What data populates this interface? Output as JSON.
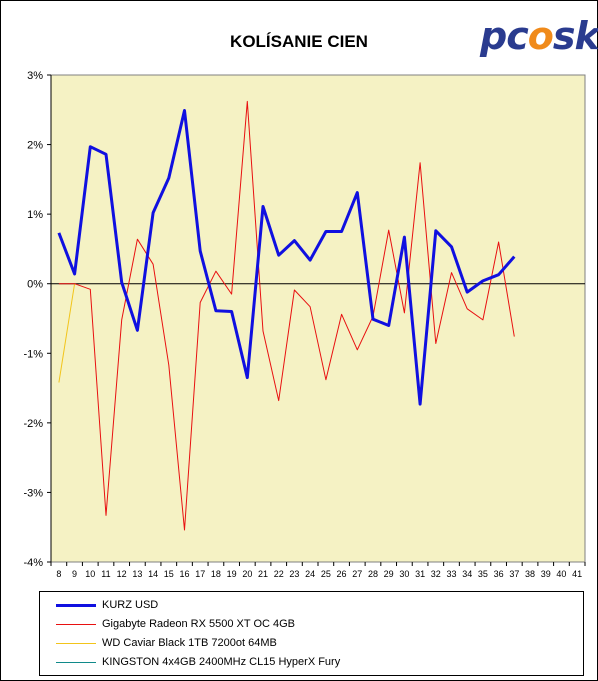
{
  "logo_text": "pcosk",
  "chart_data": {
    "type": "line",
    "title": "KOLÍSANIE CIEN",
    "xlabel": "",
    "ylabel": "",
    "ylim": [
      -4,
      3
    ],
    "y_ticks": [
      "-4%",
      "-3%",
      "-2%",
      "-1%",
      "0%",
      "1%",
      "2%",
      "3%"
    ],
    "grid": false,
    "legend_position": "bottom",
    "background_color": "#f5f2c4",
    "categories": [
      "8",
      "9",
      "10",
      "11",
      "12",
      "13",
      "14",
      "15",
      "16",
      "17",
      "18",
      "19",
      "20",
      "21",
      "22",
      "23",
      "24",
      "25",
      "26",
      "27",
      "28",
      "29",
      "30",
      "31",
      "32",
      "33",
      "34",
      "35",
      "36",
      "37",
      "38",
      "39",
      "40",
      "41"
    ],
    "series": [
      {
        "name": "KURZ USD",
        "color": "#1010e0",
        "width": 3,
        "values": [
          0.73,
          0.14,
          1.97,
          1.86,
          0.02,
          -0.67,
          1.02,
          1.52,
          2.49,
          0.47,
          -0.39,
          -0.4,
          -1.35,
          1.11,
          0.41,
          0.62,
          0.34,
          0.75,
          0.75,
          1.31,
          -0.51,
          -0.6,
          0.67,
          -1.73,
          0.76,
          0.53,
          -0.12,
          0.04,
          0.13,
          0.39,
          null,
          null,
          null,
          null
        ]
      },
      {
        "name": "Gigabyte Radeon RX 5500 XT OC 4GB",
        "color": "#e81010",
        "width": 1,
        "values": [
          0.0,
          0.0,
          -0.08,
          -3.33,
          -0.52,
          0.64,
          0.28,
          -1.17,
          -3.54,
          -0.27,
          0.18,
          -0.15,
          2.62,
          -0.68,
          -1.68,
          -0.09,
          -0.33,
          -1.38,
          -0.44,
          -0.95,
          -0.47,
          0.77,
          -0.42,
          1.74,
          -0.86,
          0.16,
          -0.36,
          -0.52,
          0.6,
          -0.76,
          null,
          null,
          null,
          null
        ]
      },
      {
        "name": "WD Caviar Black 1TB 7200ot 64MB",
        "color": "#f2c41a",
        "width": 1,
        "values": [
          -1.42,
          0.0,
          null,
          null,
          null,
          null,
          null,
          null,
          null,
          null,
          null,
          null,
          null,
          null,
          null,
          null,
          null,
          null,
          null,
          null,
          null,
          null,
          null,
          null,
          null,
          null,
          null,
          null,
          null,
          null,
          null,
          null,
          null,
          null
        ]
      },
      {
        "name": "KINGSTON 4x4GB 2400MHz CL15 HyperX Fury",
        "color": "#108a8a",
        "width": 1,
        "values": [
          null,
          null,
          null,
          null,
          null,
          null,
          null,
          null,
          null,
          null,
          null,
          null,
          null,
          null,
          null,
          null,
          null,
          null,
          null,
          null,
          null,
          null,
          null,
          null,
          null,
          null,
          null,
          null,
          null,
          null,
          null,
          null,
          null,
          null
        ]
      }
    ]
  }
}
